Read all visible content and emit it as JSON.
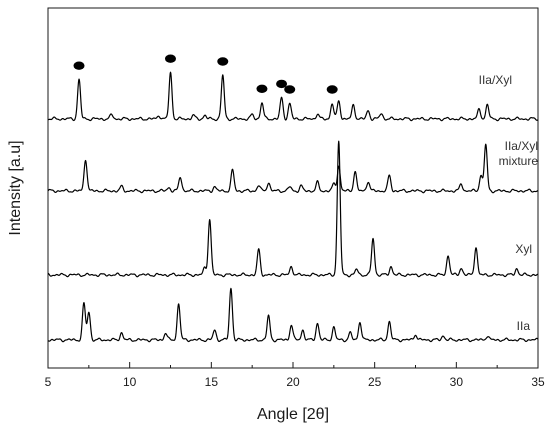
{
  "chart_data": {
    "type": "line",
    "xlabel": "Angle [2θ]",
    "ylabel": "Intensity [a.u]",
    "xlim": [
      5,
      35
    ],
    "xticks": [
      5,
      10,
      15,
      20,
      25,
      30,
      35
    ],
    "grid": false,
    "y_tick_labels": false,
    "stacked": true,
    "series": [
      {
        "name": "IIa/Xyl",
        "label_lines": [
          "IIa/Xyl"
        ],
        "peaks": [
          [
            6.9,
            0.56
          ],
          [
            8.9,
            0.06
          ],
          [
            11.8,
            0.05
          ],
          [
            12.5,
            0.66
          ],
          [
            13.9,
            0.05
          ],
          [
            14.6,
            0.05
          ],
          [
            15.7,
            0.62
          ],
          [
            17.5,
            0.06
          ],
          [
            18.1,
            0.23
          ],
          [
            19.3,
            0.3
          ],
          [
            19.8,
            0.22
          ],
          [
            21.5,
            0.07
          ],
          [
            22.4,
            0.22
          ],
          [
            22.8,
            0.26
          ],
          [
            23.7,
            0.2
          ],
          [
            24.6,
            0.12
          ],
          [
            25.4,
            0.08
          ],
          [
            31.4,
            0.14
          ],
          [
            31.9,
            0.2
          ]
        ]
      },
      {
        "name": "IIa/Xyl mixture",
        "label_lines": [
          "IIa/Xyl",
          "mixture"
        ],
        "peaks": [
          [
            7.3,
            0.46
          ],
          [
            9.5,
            0.06
          ],
          [
            12.4,
            0.05
          ],
          [
            13.1,
            0.2
          ],
          [
            15.2,
            0.06
          ],
          [
            16.3,
            0.3
          ],
          [
            17.9,
            0.08
          ],
          [
            18.5,
            0.12
          ],
          [
            19.8,
            0.06
          ],
          [
            20.5,
            0.07
          ],
          [
            21.5,
            0.12
          ],
          [
            22.5,
            0.1
          ],
          [
            22.8,
            0.36
          ],
          [
            23.8,
            0.28
          ],
          [
            24.6,
            0.14
          ],
          [
            25.9,
            0.22
          ],
          [
            30.3,
            0.1
          ],
          [
            31.5,
            0.22
          ],
          [
            31.8,
            0.66
          ]
        ]
      },
      {
        "name": "Xyl",
        "label_lines": [
          "Xyl"
        ],
        "peaks": [
          [
            14.6,
            0.1
          ],
          [
            14.9,
            0.8
          ],
          [
            17.9,
            0.36
          ],
          [
            19.9,
            0.12
          ],
          [
            22.8,
            1.9
          ],
          [
            23.9,
            0.08
          ],
          [
            24.9,
            0.52
          ],
          [
            26.0,
            0.12
          ],
          [
            29.5,
            0.28
          ],
          [
            30.3,
            0.1
          ],
          [
            31.2,
            0.4
          ],
          [
            33.7,
            0.09
          ]
        ]
      },
      {
        "name": "IIa",
        "label_lines": [
          "IIa"
        ],
        "peaks": [
          [
            7.2,
            0.52
          ],
          [
            7.5,
            0.4
          ],
          [
            9.5,
            0.1
          ],
          [
            12.2,
            0.1
          ],
          [
            13.0,
            0.52
          ],
          [
            15.2,
            0.14
          ],
          [
            16.2,
            0.74
          ],
          [
            18.5,
            0.34
          ],
          [
            19.9,
            0.22
          ],
          [
            20.6,
            0.14
          ],
          [
            21.5,
            0.24
          ],
          [
            22.5,
            0.18
          ],
          [
            23.5,
            0.1
          ],
          [
            24.1,
            0.26
          ],
          [
            25.9,
            0.26
          ],
          [
            27.5,
            0.08
          ],
          [
            29.2,
            0.06
          ],
          [
            31.9,
            0.06
          ]
        ]
      }
    ],
    "markers": {
      "shape": "filled-ellipse",
      "series": "IIa/Xyl",
      "x": [
        6.9,
        12.5,
        15.7,
        18.1,
        19.3,
        19.8,
        22.4
      ]
    },
    "colors": {
      "line": "#000000",
      "axis": "#1a1a1a",
      "text": "#333333",
      "background": "#ffffff"
    }
  }
}
